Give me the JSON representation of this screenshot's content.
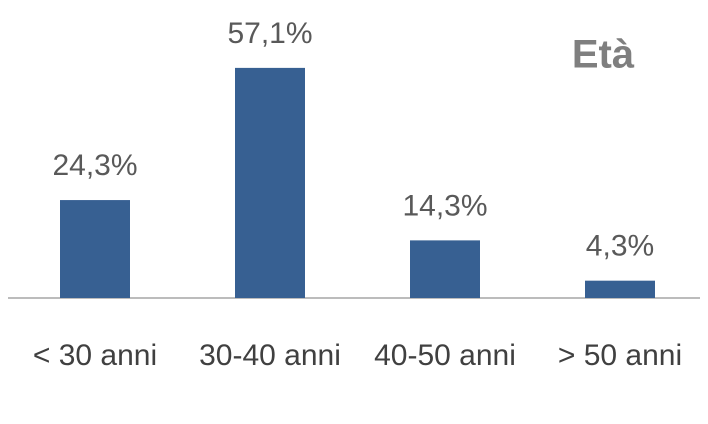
{
  "chart_data": {
    "type": "bar",
    "title": "Età",
    "categories": [
      "< 30 anni",
      "30-40 anni",
      "40-50 anni",
      "> 50 anni"
    ],
    "values": [
      24.3,
      57.1,
      14.3,
      4.3
    ],
    "value_labels": [
      "24,3%",
      "57,1%",
      "14,3%",
      "4,3%"
    ],
    "color": "#376092"
  }
}
